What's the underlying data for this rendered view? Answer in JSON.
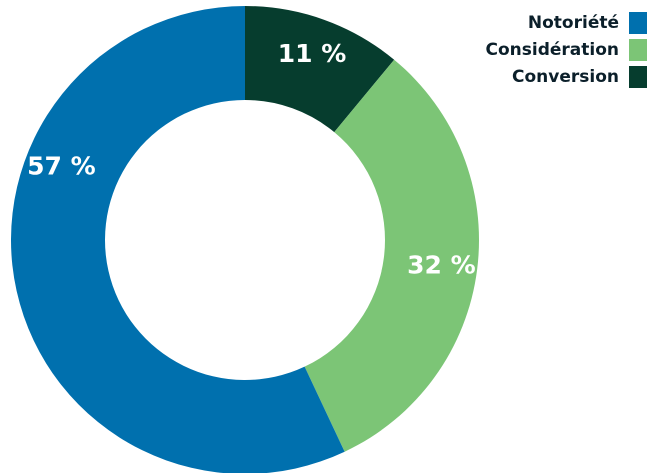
{
  "chart_data": {
    "type": "pie",
    "donut": true,
    "title": "",
    "legend_position": "top-right",
    "slices": [
      {
        "label": "Notoriété",
        "value": 57,
        "display": "57 %",
        "color": "#0070AE"
      },
      {
        "label": "Considération",
        "value": 32,
        "display": "32 %",
        "color": "#7CC576"
      },
      {
        "label": "Conversion",
        "value": 11,
        "display": "11 %",
        "color": "#063D2E"
      }
    ]
  },
  "legend": {
    "items": [
      {
        "label": "Notoriété",
        "color": "#0070AE"
      },
      {
        "label": "Considération",
        "color": "#7CC576"
      },
      {
        "label": "Conversion",
        "color": "#063D2E"
      }
    ]
  }
}
